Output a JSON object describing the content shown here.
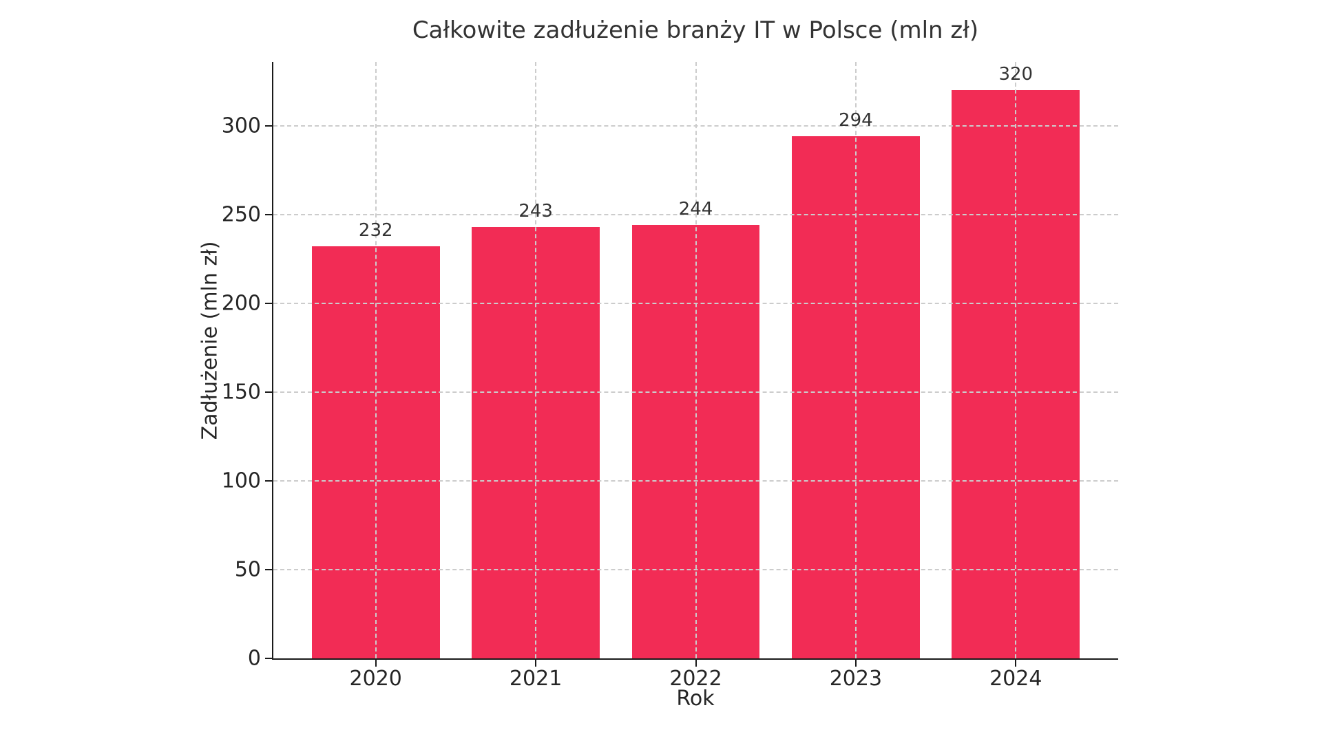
{
  "chart_data": {
    "type": "bar",
    "title": "Całkowite zadłużenie branży IT w Polsce (mln zł)",
    "xlabel": "Rok",
    "ylabel": "Zadłużenie (mln zł)",
    "categories": [
      "2020",
      "2021",
      "2022",
      "2023",
      "2024"
    ],
    "values": [
      232,
      243,
      244,
      294,
      320
    ],
    "bar_labels": [
      "232",
      "243",
      "244",
      "294",
      "320"
    ],
    "ylim": [
      0,
      336
    ],
    "yticks": [
      0,
      50,
      100,
      150,
      200,
      250,
      300
    ],
    "grid": "dashed, both axes, drawn above bars",
    "legend_position": "none",
    "colors": {
      "bar": "#F22C55",
      "grid": "#cccccc",
      "axis": "#1a1a1a",
      "text": "#262626",
      "title": "#333333",
      "background": "#ffffff"
    }
  }
}
